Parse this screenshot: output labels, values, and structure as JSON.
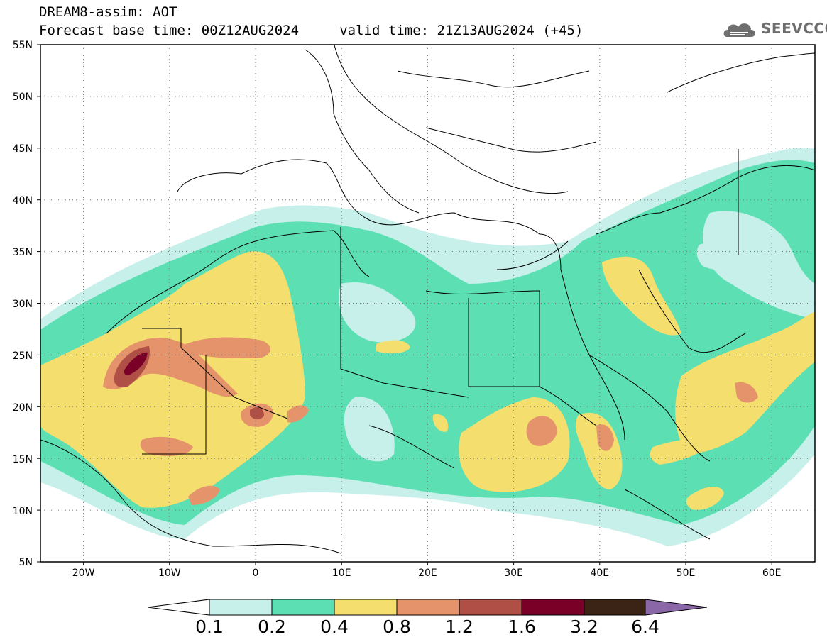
{
  "header": {
    "line1": "DREAM8-assim: AOT",
    "line2": "Forecast base time: 00Z12AUG2024     valid time: 21Z13AUG2024 (+45)"
  },
  "logo": {
    "text": "SEEVCCC",
    "icon": "cloud-icon",
    "color": "#6e6e6e"
  },
  "map": {
    "projection": "equirectangular",
    "lon_range": [
      -25,
      65
    ],
    "lat_range": [
      5,
      55
    ],
    "background": "#ffffff",
    "boundaries_color": "#000000",
    "grid": "dotted"
  },
  "axes": {
    "lat_ticks": [
      "55N",
      "50N",
      "45N",
      "40N",
      "35N",
      "30N",
      "25N",
      "20N",
      "15N",
      "10N",
      "5N"
    ],
    "lon_ticks": [
      "20W",
      "10W",
      "0",
      "10E",
      "20E",
      "30E",
      "40E",
      "50E",
      "60E"
    ]
  },
  "colorbar": {
    "labels": [
      "0.1",
      "0.2",
      "0.4",
      "0.8",
      "1.2",
      "1.6",
      "3.2",
      "6.4"
    ],
    "colors": [
      "#ffffff",
      "#c7f0ea",
      "#5ddfb4",
      "#f4df6e",
      "#e4936a",
      "#b04f45",
      "#7a0027",
      "#3b2415",
      "#8a67a6"
    ]
  },
  "chart_data": {
    "type": "heatmap",
    "variable": "AOT",
    "levels": [
      0.1,
      0.2,
      0.4,
      0.8,
      1.2,
      1.6,
      3.2,
      6.4
    ],
    "level_colors": [
      "#c7f0ea",
      "#5ddfb4",
      "#f4df6e",
      "#e4936a",
      "#b04f45",
      "#7a0027",
      "#3b2415"
    ],
    "xlim": [
      -25,
      65
    ],
    "ylim": [
      5,
      55
    ],
    "maxima": [
      {
        "lon": -13,
        "lat": 24.5,
        "value": 1.6
      },
      {
        "lon": 0.5,
        "lat": 19.8,
        "value": 1.2
      },
      {
        "lon": 34,
        "lat": 17.5,
        "value": 0.8
      },
      {
        "lon": 40.5,
        "lat": 16.5,
        "value": 0.8
      },
      {
        "lon": 58,
        "lat": 21.5,
        "value": 0.8
      },
      {
        "lon": -1,
        "lat": 12,
        "value": 0.8
      }
    ]
  }
}
